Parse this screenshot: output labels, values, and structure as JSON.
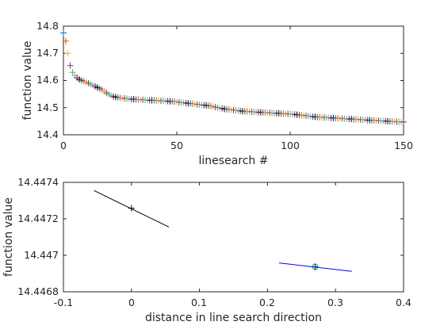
{
  "chart_data": [
    {
      "type": "scatter",
      "xlabel": "linesearch #",
      "ylabel": "function value",
      "xlim": [
        0,
        150
      ],
      "ylim": [
        14.4,
        14.8
      ],
      "xticks": [
        0,
        50,
        100,
        150
      ],
      "xtick_labels": [
        "0",
        "50",
        "100",
        "150"
      ],
      "yticks": [
        14.4,
        14.5,
        14.6,
        14.7,
        14.8
      ],
      "ytick_labels": [
        "14.4",
        "14.5",
        "14.6",
        "14.7",
        "14.8"
      ],
      "marker": "+",
      "box": true,
      "grid": false,
      "colors": [
        "#0072BD",
        "#D95319",
        "#EDB120",
        "#7E2F8E",
        "#77AC30",
        "#4DBEEE",
        "#A2142F",
        "#000000"
      ],
      "series": [
        {
          "x": [
            0,
            1,
            2,
            3,
            4,
            5,
            6,
            7,
            8,
            9,
            10,
            11,
            12,
            13,
            14,
            15,
            16,
            17,
            18,
            19,
            20,
            21,
            22,
            23,
            24,
            25,
            26,
            27,
            28,
            29,
            30,
            31,
            32,
            33,
            34,
            35,
            36,
            37,
            38,
            39,
            40,
            41,
            42,
            43,
            44,
            45,
            46,
            47,
            48,
            49,
            50,
            51,
            52,
            53,
            54,
            55,
            56,
            57,
            58,
            59,
            60,
            61,
            62,
            63,
            64,
            65,
            66,
            67,
            68,
            69,
            70,
            71,
            72,
            73,
            74,
            75,
            76,
            77,
            78,
            79,
            80,
            81,
            82,
            83,
            84,
            85,
            86,
            87,
            88,
            89,
            90,
            91,
            92,
            93,
            94,
            95,
            96,
            97,
            98,
            99,
            100,
            101,
            102,
            103,
            104,
            105,
            106,
            107,
            108,
            109,
            110,
            111,
            112,
            113,
            114,
            115,
            116,
            117,
            118,
            119,
            120,
            121,
            122,
            123,
            124,
            125,
            126,
            127,
            128,
            129,
            130,
            131,
            132,
            133,
            134,
            135,
            136,
            137,
            138,
            139,
            140,
            141,
            142,
            143,
            144,
            145,
            146,
            147,
            148,
            149,
            150
          ],
          "y": [
            14.775,
            14.745,
            14.7,
            14.655,
            14.63,
            14.618,
            14.61,
            14.604,
            14.6,
            14.597,
            14.594,
            14.59,
            14.586,
            14.582,
            14.578,
            14.574,
            14.57,
            14.566,
            14.56,
            14.554,
            14.549,
            14.545,
            14.541,
            14.539,
            14.537,
            14.536,
            14.535,
            14.534,
            14.533,
            14.532,
            14.531,
            14.531,
            14.53,
            14.53,
            14.529,
            14.529,
            14.528,
            14.528,
            14.527,
            14.527,
            14.527,
            14.526,
            14.526,
            14.525,
            14.525,
            14.524,
            14.524,
            14.523,
            14.523,
            14.522,
            14.521,
            14.52,
            14.519,
            14.518,
            14.517,
            14.516,
            14.515,
            14.514,
            14.513,
            14.512,
            14.511,
            14.51,
            14.509,
            14.508,
            14.507,
            14.506,
            14.504,
            14.502,
            14.5,
            14.498,
            14.497,
            14.495,
            14.494,
            14.493,
            14.492,
            14.491,
            14.49,
            14.489,
            14.488,
            14.487,
            14.486,
            14.486,
            14.485,
            14.485,
            14.484,
            14.484,
            14.483,
            14.483,
            14.482,
            14.482,
            14.481,
            14.481,
            14.48,
            14.48,
            14.479,
            14.479,
            14.478,
            14.478,
            14.477,
            14.477,
            14.476,
            14.476,
            14.475,
            14.474,
            14.473,
            14.472,
            14.471,
            14.47,
            14.469,
            14.468,
            14.467,
            14.466,
            14.465,
            14.465,
            14.464,
            14.464,
            14.463,
            14.463,
            14.462,
            14.462,
            14.461,
            14.461,
            14.46,
            14.46,
            14.459,
            14.459,
            14.458,
            14.458,
            14.457,
            14.457,
            14.456,
            14.456,
            14.455,
            14.455,
            14.454,
            14.454,
            14.453,
            14.453,
            14.452,
            14.452,
            14.451,
            14.451,
            14.45,
            14.45,
            14.449,
            14.449,
            14.448,
            14.448,
            14.448,
            14.447,
            14.447
          ]
        }
      ]
    },
    {
      "type": "line",
      "xlabel": "distance in line search direction",
      "ylabel": "function value",
      "xlim": [
        -0.1,
        0.4
      ],
      "ylim": [
        14.4468,
        14.4474
      ],
      "xticks": [
        -0.1,
        0,
        0.1,
        0.2,
        0.3,
        0.4
      ],
      "xtick_labels": [
        "-0.1",
        "0",
        "0.1",
        "0.2",
        "0.3",
        "0.4"
      ],
      "yticks": [
        14.4468,
        14.447,
        14.4472,
        14.4474
      ],
      "ytick_labels": [
        "14.4468",
        "14.447",
        "14.4472",
        "14.4474"
      ],
      "box": true,
      "grid": false,
      "series": [
        {
          "x": [
            -0.055,
            0.055
          ],
          "y": [
            14.447355,
            14.447155
          ],
          "color": "#000000",
          "marker": {
            "x": 0,
            "y": 14.447258,
            "symbol": "+",
            "color": "#000000"
          }
        },
        {
          "x": [
            0.217,
            0.324
          ],
          "y": [
            14.446958,
            14.446912
          ],
          "color": "#0000FF",
          "marker": {
            "x": 0.27,
            "y": 14.446937,
            "symbol": "+o",
            "color": "#00C000"
          }
        }
      ]
    }
  ]
}
